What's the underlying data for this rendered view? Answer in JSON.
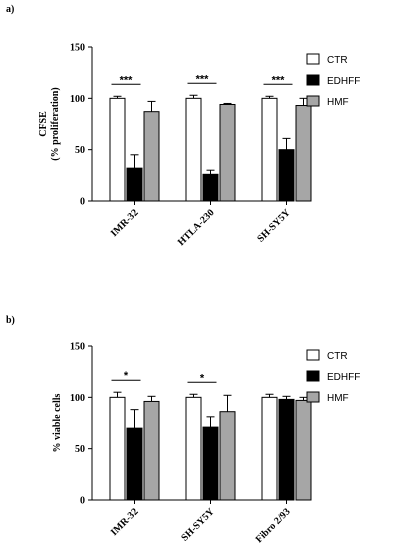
{
  "chart_data": [
    {
      "type": "bar",
      "panel_label": "a)",
      "ylabel_lines": [
        "CFSE",
        "(% proliferation)"
      ],
      "ylim": [
        0,
        150
      ],
      "yticks": [
        "0",
        "50",
        "100",
        "150"
      ],
      "categories": [
        "IMR-32",
        "HTLA-230",
        "SH-SY5Y"
      ],
      "series": [
        {
          "name": "CTR",
          "values": [
            100,
            100,
            100
          ],
          "errors": [
            2,
            3,
            2
          ],
          "color": "#ffffff"
        },
        {
          "name": "EDHFF",
          "values": [
            32,
            26,
            50
          ],
          "errors": [
            13,
            4,
            11
          ],
          "color": "#000000"
        },
        {
          "name": "HMF",
          "values": [
            87,
            94,
            93
          ],
          "errors": [
            10,
            1,
            7
          ],
          "color": "#a6a6a6"
        }
      ],
      "significance": [
        "***",
        "***",
        "***"
      ],
      "legend_position": "right"
    },
    {
      "type": "bar",
      "panel_label": "b)",
      "ylabel_lines": [
        "% viable cells"
      ],
      "ylim": [
        0,
        150
      ],
      "yticks": [
        "0",
        "50",
        "100",
        "150"
      ],
      "categories": [
        "IMR-32",
        "SH-SY5Y",
        "Fibro 2/93"
      ],
      "series": [
        {
          "name": "CTR",
          "values": [
            100,
            100,
            100
          ],
          "errors": [
            5,
            3,
            3
          ],
          "color": "#ffffff"
        },
        {
          "name": "EDHFF",
          "values": [
            70,
            71,
            98
          ],
          "errors": [
            18,
            10,
            3
          ],
          "color": "#000000"
        },
        {
          "name": "HMF",
          "values": [
            96,
            86,
            97
          ],
          "errors": [
            5,
            16,
            3
          ],
          "color": "#a6a6a6"
        }
      ],
      "significance": [
        "*",
        "*",
        ""
      ],
      "legend_position": "right"
    }
  ]
}
